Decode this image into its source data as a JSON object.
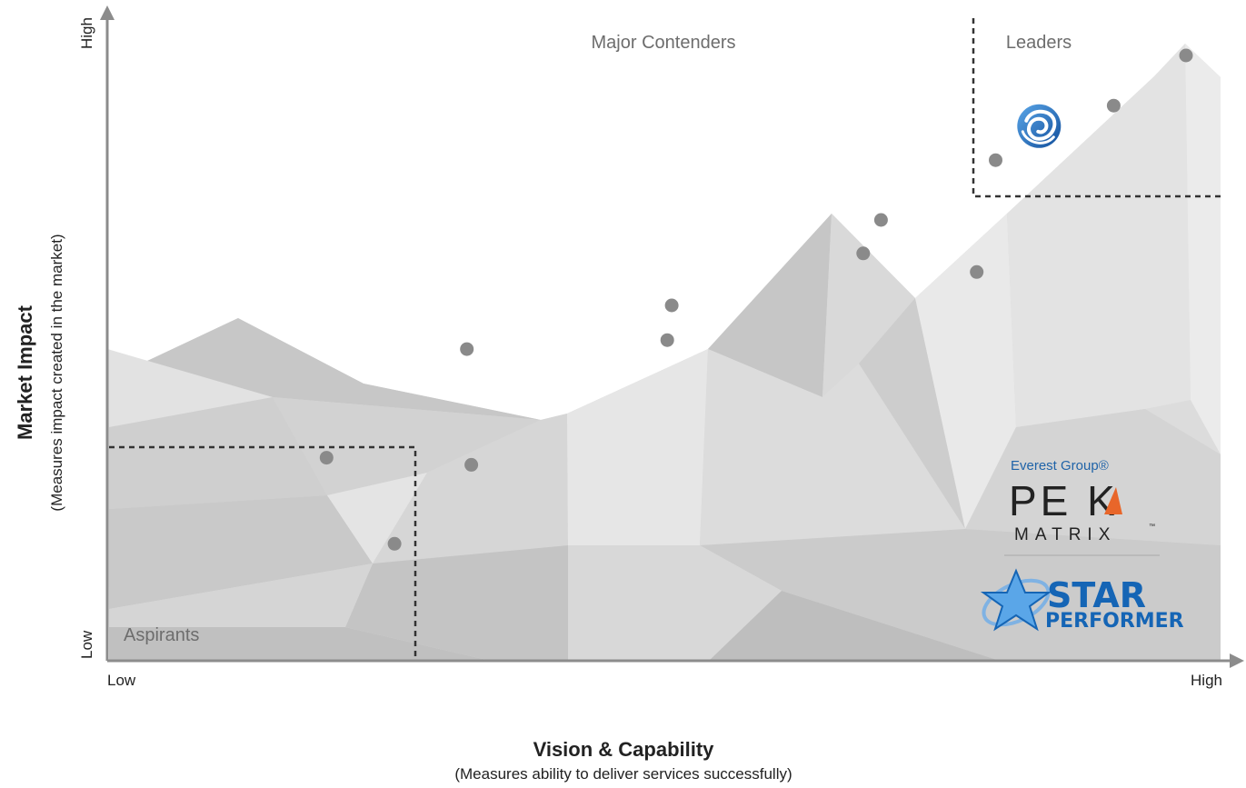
{
  "chart_data": {
    "type": "scatter",
    "title": "",
    "xlabel": "Vision & Capability",
    "xlabel_sub": "(Measures ability to deliver services successfully)",
    "ylabel": "Market Impact",
    "ylabel_sub": "(Measures impact created in the market)",
    "x_ticks": {
      "low": "Low",
      "high": "High"
    },
    "y_ticks": {
      "low": "Low",
      "high": "High"
    },
    "xlim": [
      0,
      100
    ],
    "ylim": [
      0,
      100
    ],
    "grid": false,
    "quadrants": {
      "leaders": "Leaders",
      "major_contenders": "Major Contenders",
      "aspirants": "Aspirants"
    },
    "points": [
      {
        "x": 19.7,
        "y": 31.6
      },
      {
        "x": 25.8,
        "y": 18.2
      },
      {
        "x": 32.3,
        "y": 48.5
      },
      {
        "x": 32.7,
        "y": 30.5
      },
      {
        "x": 50.3,
        "y": 49.9
      },
      {
        "x": 50.7,
        "y": 55.3
      },
      {
        "x": 67.9,
        "y": 63.4
      },
      {
        "x": 69.5,
        "y": 68.6
      },
      {
        "x": 78.1,
        "y": 60.5
      },
      {
        "x": 79.8,
        "y": 77.9
      },
      {
        "x": 90.4,
        "y": 86.4
      },
      {
        "x": 96.9,
        "y": 94.2
      }
    ],
    "highlighted_vendor": {
      "x": 83.7,
      "y": 83.2,
      "icon": "blue-swirl-logo-icon",
      "color": "#1e6fc2"
    }
  },
  "badge": {
    "everest": "Everest Group®",
    "peak": "PE K",
    "matrix": "MATRIX",
    "tm": "™",
    "star": "STAR",
    "performer": "PERFORMER",
    "icon": "star-performer-icon"
  },
  "colors": {
    "dot": "#8a8a8a",
    "dash": "#333333",
    "axis": "#8c8c8c",
    "peak_accent": "#e8662a",
    "brand_blue": "#1565b5"
  }
}
